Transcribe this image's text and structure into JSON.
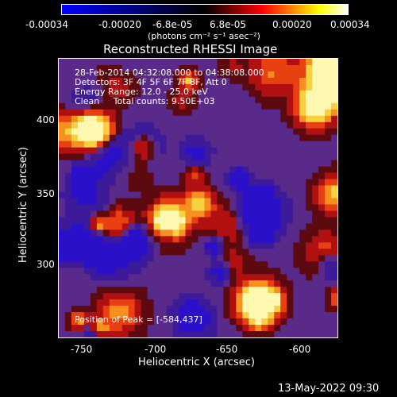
{
  "colorbar": {
    "tick_labels": [
      "-0.00034",
      "-0.00020",
      "-6.8e-05",
      "6.8e-05",
      "0.00020",
      "0.00034"
    ],
    "units": "(photons cm⁻² s⁻¹ asec⁻²)",
    "colors": [
      "#0000ff",
      "#000000",
      "#ff0000",
      "#ffff00",
      "#ffffff"
    ]
  },
  "plot": {
    "title": "Reconstructed RHESSI Image",
    "xlabel": "Heliocentric X (arcsec)",
    "ylabel": "Heliocentric Y (arcsec)",
    "x_ticks": [
      "-750",
      "-700",
      "-650",
      "-600"
    ],
    "y_ticks": [
      "400",
      "350",
      "300"
    ],
    "info_lines": [
      "28-Feb-2014 04:32:08.000 to 04:38:08.000",
      "Detectors: 3F 4F 5F 6F 7F 8F, Att 0",
      "Energy Range: 12.0 - 25.0 keV",
      "Clean     Total counts: 9.50E+03"
    ],
    "peak_text": "Position of Peak = [-584,437]"
  },
  "timestamp": "13-May-2022 09:30"
}
